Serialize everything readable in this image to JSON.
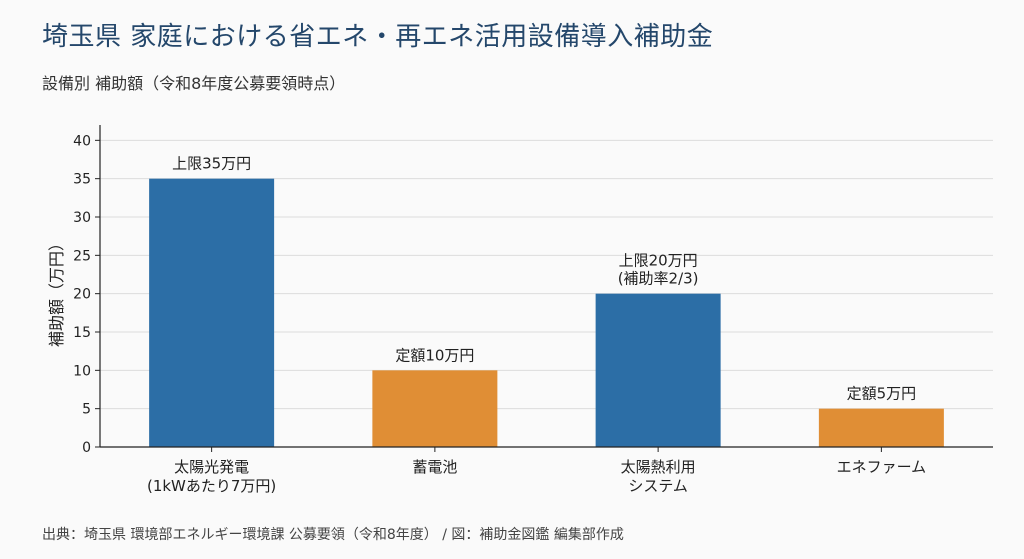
{
  "title": "埼玉県 家庭における省エネ・再エネ活用設備導入補助金",
  "subtitle": "設備別 補助額（令和8年度公募要領時点）",
  "source": "出典：埼玉県 環境部エネルギー環境課 公募要領（令和8年度） / 図：補助金図鑑 編集部作成",
  "colors": {
    "blue": "#2c6ea6",
    "orange": "#e08e35",
    "title": "#24476b"
  },
  "chart_data": {
    "type": "bar",
    "ylabel": "補助額（万円）",
    "ylim": [
      0,
      42
    ],
    "yticks": [
      0,
      5,
      10,
      15,
      20,
      25,
      30,
      35,
      40
    ],
    "grid": true,
    "categories": [
      [
        "太陽光発電",
        "(1kWあたり7万円)"
      ],
      [
        "蓄電池"
      ],
      [
        "太陽熱利用",
        "システム"
      ],
      [
        "エネファーム"
      ]
    ],
    "values": [
      35,
      10,
      20,
      5
    ],
    "bar_colors": [
      "#2c6ea6",
      "#e08e35",
      "#2c6ea6",
      "#e08e35"
    ],
    "data_labels": [
      [
        "上限35万円"
      ],
      [
        "定額10万円"
      ],
      [
        "上限20万円",
        "(補助率2/3)"
      ],
      [
        "定額5万円"
      ]
    ]
  }
}
